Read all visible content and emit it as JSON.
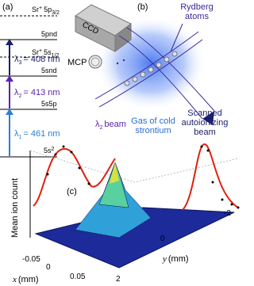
{
  "panel_a": {
    "label": "(a)",
    "levels": [
      {
        "ion": "Sr",
        "charge": "+",
        "state": "5p",
        "sub": "3/2"
      },
      {
        "state": "5pnd"
      },
      {
        "ion": "Sr",
        "charge": "+",
        "state": "5s",
        "sub": "1/2"
      },
      {
        "state": "5snd"
      },
      {
        "state": "5s5p"
      },
      {
        "state": "5s",
        "sup": "2"
      }
    ],
    "transitions": [
      {
        "symbol": "λ",
        "index": "3",
        "text": "= 408 nm"
      },
      {
        "symbol": "λ",
        "index": "2",
        "text": "= 413 nm"
      },
      {
        "symbol": "λ",
        "index": "1",
        "text": "= 461 nm"
      }
    ]
  },
  "panel_b": {
    "label": "(b)",
    "ccd": "CCD",
    "rydberg": [
      "Rydberg",
      "atoms"
    ],
    "mcp": "MCP",
    "beam": {
      "symbol": "λ",
      "index": "2",
      "text": "beam"
    },
    "gas": [
      "Gas of cold",
      "strontium"
    ],
    "scanned": [
      "Scanned",
      "autoionizing",
      "beam"
    ]
  },
  "panel_c": {
    "label": "(c)",
    "z_label": "Mean ion count",
    "y_label": {
      "symbol": "y",
      "unit": "(mm)"
    },
    "x_label": {
      "symbol": "x",
      "unit": "(mm)"
    },
    "x_ticks": [
      "-0.05",
      "0",
      "0.05"
    ],
    "y_ticks": [
      "2",
      "0",
      "-2"
    ]
  }
}
